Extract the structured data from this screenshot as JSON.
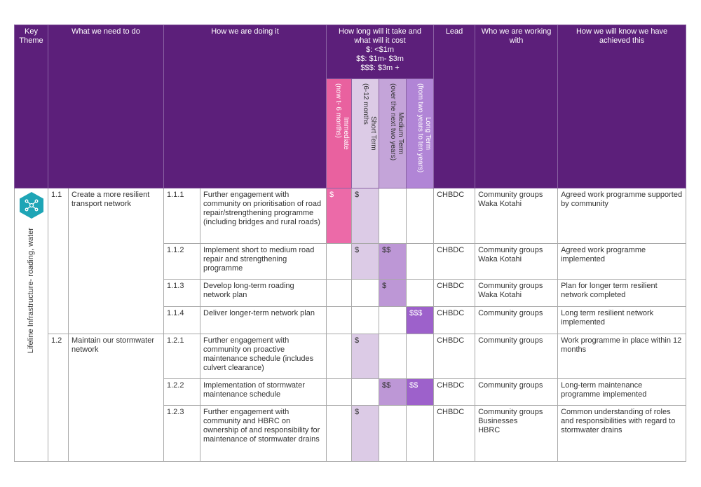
{
  "header": {
    "key_theme": "Key Theme",
    "what": "What we need to do",
    "how": "How we are doing it",
    "cost_title": "How long will it take and what will it cost",
    "cost_legend": [
      "$: <$1m",
      "$$: $1m- $3m",
      "$$$: $3m +"
    ],
    "lead": "Lead",
    "who": "Who we are working with",
    "achieved": "How we will know we have achieved this"
  },
  "timeframes": [
    {
      "name": "Immediate",
      "detail": "(now t- 6 months)"
    },
    {
      "name": "Short Term",
      "detail": "(6-12 months"
    },
    {
      "name": "Medium Term",
      "detail": "(over the next two years)"
    },
    {
      "name": "Long Term",
      "detail": "(from two years to ten years)"
    }
  ],
  "theme": "Lifeline Infrastructure- roading, water",
  "goals": [
    {
      "number": "1.1",
      "title": "Create a more resilient transport network",
      "actions": [
        {
          "number": "1.1.1",
          "description": "Further engagement with community on prioritisation of road repair/strengthening programme (including bridges and rural roads)",
          "costs": [
            "$",
            "$",
            null,
            null
          ],
          "lead": "CHBDC",
          "partners": [
            "Community groups",
            "Waka Kotahi"
          ],
          "measure": "Agreed work programme supported by community"
        },
        {
          "number": "1.1.2",
          "description": "Implement short to medium road repair and strengthening programme",
          "costs": [
            null,
            "$",
            "$$",
            null
          ],
          "lead": "CHBDC",
          "partners": [
            "Community groups",
            "Waka Kotahi"
          ],
          "measure": "Agreed work programme implemented"
        },
        {
          "number": "1.1.3",
          "description": "Develop long-term roading network plan",
          "costs": [
            null,
            null,
            "$",
            null
          ],
          "lead": "CHBDC",
          "partners": [
            "Community groups",
            "Waka Kotahi"
          ],
          "measure": "Plan for longer term resilient network completed"
        },
        {
          "number": "1.1.4",
          "description": "Deliver longer-term network plan",
          "costs": [
            null,
            null,
            null,
            "$$$"
          ],
          "lead": "CHBDC",
          "partners": [
            "Community groups"
          ],
          "measure": "Long term resilient network implemented"
        }
      ]
    },
    {
      "number": "1.2",
      "title": "Maintain our stormwater network",
      "actions": [
        {
          "number": "1.2.1",
          "description": "Further engagement with community on proactive maintenance schedule (includes culvert clearance)",
          "costs": [
            null,
            "$",
            null,
            null
          ],
          "lead": "CHBDC",
          "partners": [
            "Community groups"
          ],
          "measure": "Work programme in place within 12 months"
        },
        {
          "number": "1.2.2",
          "description": "Implementation of stormwater maintenance schedule",
          "costs": [
            null,
            null,
            "$$",
            "$$"
          ],
          "lead": "CHBDC",
          "partners": [
            "Community groups"
          ],
          "measure": "Long-term maintenance programme implemented"
        },
        {
          "number": "1.2.3",
          "description": "Further engagement with community and HBRC on ownership of and responsibility for maintenance of stormwater drains",
          "costs": [
            null,
            "$",
            null,
            null
          ],
          "lead": "CHBDC",
          "partners": [
            "Community groups",
            "Businesses",
            "HBRC"
          ],
          "measure": "Common understanding of roles and responsibilities with regard to stormwater drains"
        }
      ]
    }
  ]
}
